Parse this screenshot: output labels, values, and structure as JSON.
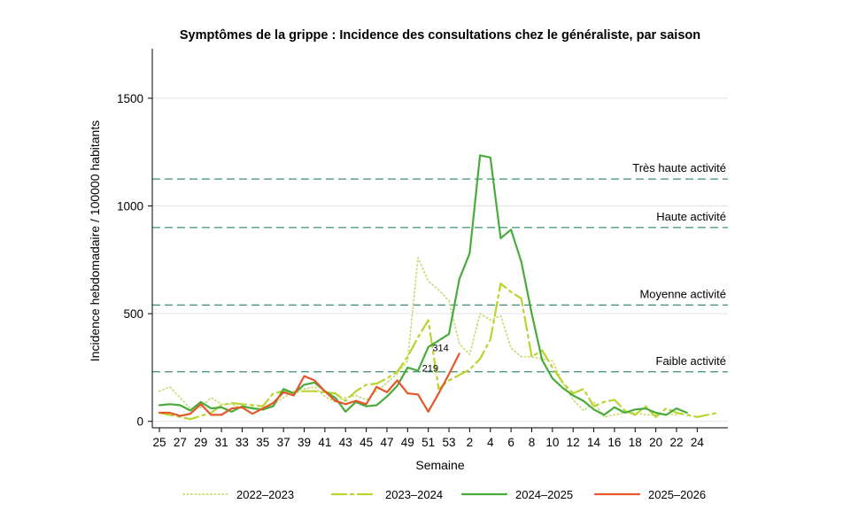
{
  "chart_data": {
    "type": "line",
    "title": "Symptômes de la grippe : Incidence des consultations chez le généraliste, par saison",
    "xlabel": "Semaine",
    "ylabel": "Incidence hebdomadaire / 100000 habitants",
    "ylim": [
      -30,
      1730
    ],
    "yticks": [
      0,
      500,
      1000,
      1500
    ],
    "grid": true,
    "xtick_labels": [
      "25",
      "27",
      "29",
      "31",
      "33",
      "35",
      "37",
      "39",
      "41",
      "43",
      "45",
      "47",
      "49",
      "51",
      "53",
      "2",
      "4",
      "6",
      "8",
      "10",
      "12",
      "14",
      "16",
      "18",
      "20",
      "22",
      "24"
    ],
    "thresholds": [
      {
        "label": "Très haute activité",
        "value": 1125
      },
      {
        "label": "Haute activité",
        "value": 900
      },
      {
        "label": "Moyenne activité",
        "value": 540
      },
      {
        "label": "Faible activité",
        "value": 230
      }
    ],
    "series": [
      {
        "name": "2022–2023",
        "color": "#c8dc78",
        "style": "dotted",
        "values": [
          140,
          160,
          110,
          60,
          65,
          110,
          80,
          80,
          60,
          65,
          50,
          80,
          110,
          140,
          150,
          160,
          115,
          90,
          110,
          120,
          100,
          140,
          180,
          220,
          280,
          760,
          650,
          610,
          560,
          360,
          310,
          500,
          470,
          490,
          340,
          300,
          300,
          290,
          280,
          180,
          100,
          50,
          90,
          20,
          30,
          40,
          40,
          30,
          30,
          35,
          30
        ]
      },
      {
        "name": "2023–2024",
        "color": "#bad32f",
        "style": "dashdot",
        "values": [
          40,
          30,
          20,
          10,
          25,
          40,
          75,
          85,
          80,
          75,
          70,
          130,
          140,
          135,
          140,
          140,
          135,
          130,
          95,
          140,
          170,
          175,
          200,
          230,
          300,
          390,
          470,
          150,
          190,
          215,
          240,
          290,
          380,
          640,
          600,
          570,
          300,
          330,
          250,
          180,
          130,
          150,
          70,
          90,
          100,
          50,
          30,
          70,
          20,
          60,
          40,
          30,
          20,
          30,
          40
        ]
      },
      {
        "name": "2024–2025",
        "color": "#48ab3c",
        "style": "solid",
        "values": [
          75,
          80,
          75,
          50,
          90,
          60,
          65,
          45,
          70,
          60,
          55,
          70,
          150,
          130,
          170,
          180,
          140,
          110,
          45,
          90,
          70,
          75,
          115,
          165,
          250,
          235,
          345,
          375,
          405,
          660,
          780,
          1235,
          1225,
          850,
          890,
          740,
          500,
          285,
          200,
          155,
          120,
          95,
          55,
          30,
          65,
          40,
          55,
          60,
          40,
          30,
          60,
          40
        ]
      },
      {
        "name": "2025–2026",
        "color": "#e5572a",
        "style": "solid",
        "values": [
          40,
          40,
          25,
          35,
          80,
          30,
          30,
          60,
          65,
          35,
          60,
          85,
          135,
          120,
          210,
          190,
          140,
          95,
          80,
          95,
          80,
          160,
          135,
          190,
          130,
          125,
          45,
          130,
          219,
          314
        ]
      }
    ],
    "annotations": [
      {
        "text": "219",
        "series": "2025–2026",
        "index": 28
      },
      {
        "text": "314",
        "series": "2025–2026",
        "index": 29
      }
    ],
    "legend_position": "bottom"
  }
}
